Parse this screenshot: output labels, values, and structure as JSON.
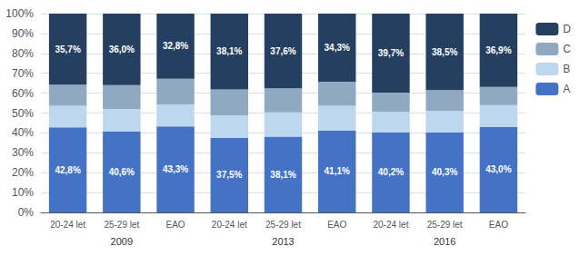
{
  "chart_data": {
    "type": "bar",
    "stacked": true,
    "categories": [
      "20-24 let",
      "25-29 let",
      "EAO",
      "20-24 let",
      "25-29 let",
      "EAO",
      "20-24 let",
      "25-29 let",
      "EAO"
    ],
    "groups": [
      "2009",
      "2013",
      "2016"
    ],
    "series": [
      {
        "name": "A",
        "color": "#4472C4",
        "data_labels": true,
        "values": [
          42.8,
          40.6,
          43.3,
          37.5,
          38.1,
          41.1,
          40.2,
          40.3,
          43.0
        ],
        "value_labels": [
          "42,8%",
          "40,6%",
          "43,3%",
          "37,5%",
          "38,1%",
          "41,1%",
          "40,2%",
          "40,3%",
          "43,0%"
        ]
      },
      {
        "name": "B",
        "color": "#BDD7EE",
        "values": [
          10.8,
          11.4,
          11.0,
          11.4,
          12.2,
          12.6,
          10.5,
          10.7,
          11.0
        ]
      },
      {
        "name": "C",
        "color": "#8EA9C1",
        "values": [
          10.7,
          12.0,
          12.9,
          13.0,
          12.1,
          12.0,
          9.6,
          10.5,
          9.1
        ]
      },
      {
        "name": "D",
        "color": "#243F60",
        "data_labels": true,
        "values": [
          35.7,
          36.0,
          32.8,
          38.1,
          37.6,
          34.3,
          39.7,
          38.5,
          36.9
        ],
        "value_labels": [
          "35,7%",
          "36,0%",
          "32,8%",
          "38,1%",
          "37,6%",
          "34,3%",
          "39,7%",
          "38,5%",
          "36,9%"
        ]
      }
    ],
    "ylim": [
      0,
      100
    ],
    "yticks": [
      {
        "value": 0,
        "label": "0%"
      },
      {
        "value": 10,
        "label": "10%"
      },
      {
        "value": 20,
        "label": "20%"
      },
      {
        "value": 30,
        "label": "30%"
      },
      {
        "value": 40,
        "label": "40%"
      },
      {
        "value": 50,
        "label": "50%"
      },
      {
        "value": 60,
        "label": "60%"
      },
      {
        "value": 70,
        "label": "70%"
      },
      {
        "value": 80,
        "label": "80%"
      },
      {
        "value": 90,
        "label": "90%"
      },
      {
        "value": 100,
        "label": "100%"
      }
    ],
    "grid": true,
    "legend": "right"
  }
}
